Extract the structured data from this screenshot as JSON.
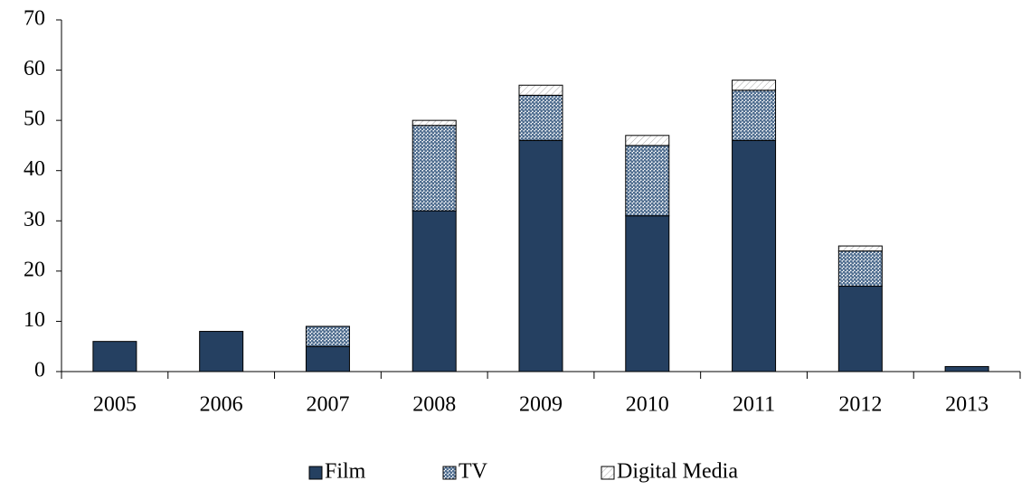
{
  "chart_data": {
    "type": "stacked_bar",
    "categories": [
      "2005",
      "2006",
      "2007",
      "2008",
      "2009",
      "2010",
      "2011",
      "2012",
      "2013"
    ],
    "series": [
      {
        "name": "Film",
        "color": "#254061",
        "values": [
          6,
          8,
          5,
          32,
          46,
          31,
          46,
          17,
          1
        ]
      },
      {
        "name": "TV",
        "color": "#4f6d8f",
        "values": [
          0,
          0,
          4,
          17,
          9,
          14,
          10,
          7,
          0
        ]
      },
      {
        "name": "Digital Media",
        "color": "#a6a6a6",
        "values": [
          0,
          0,
          0,
          1,
          2,
          2,
          2,
          1,
          0
        ]
      }
    ],
    "ylim": [
      0,
      70
    ],
    "yticks": [
      0,
      10,
      20,
      30,
      40,
      50,
      60,
      70
    ],
    "legend": "bottom"
  }
}
